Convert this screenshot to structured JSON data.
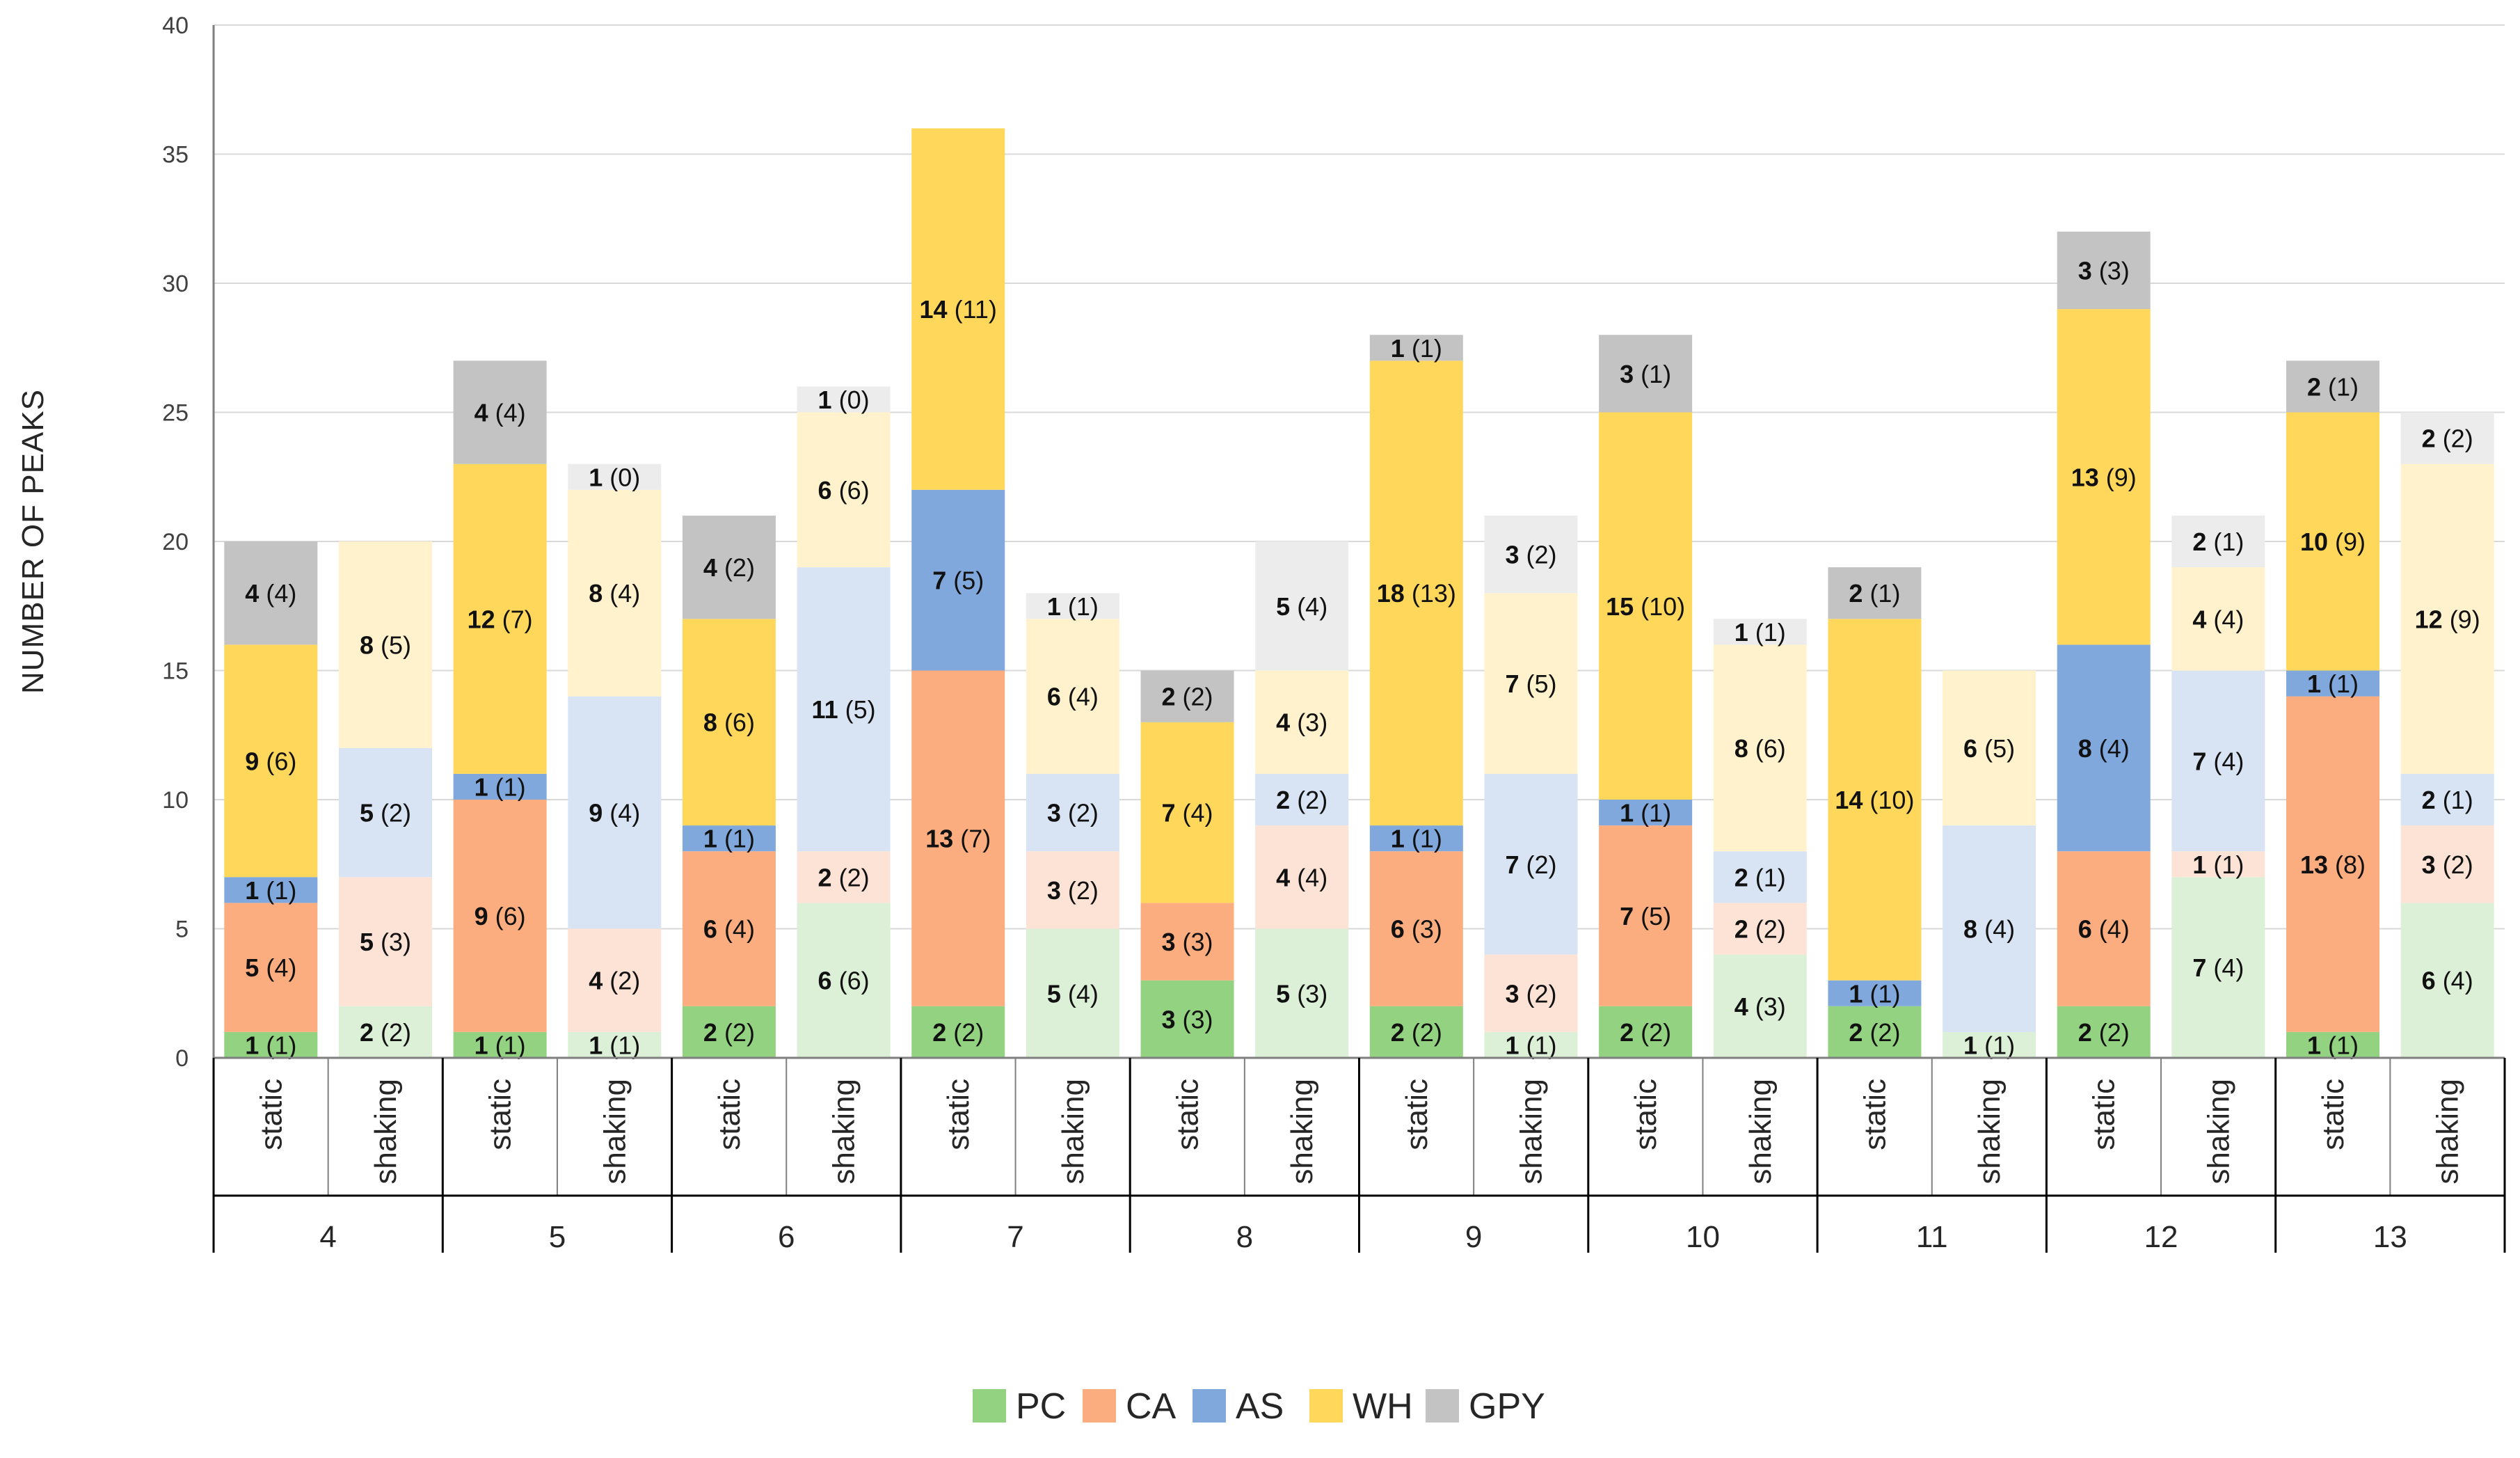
{
  "chart_data": {
    "type": "stacked-bar",
    "title": "",
    "xlabel": "",
    "ylabel": "NUMBER OF PEAKS",
    "ylim": [
      0,
      40
    ],
    "yticks": [
      0,
      5,
      10,
      15,
      20,
      25,
      30,
      35,
      40
    ],
    "grid": true,
    "legend_position": "bottom-center",
    "groups": [
      "4",
      "5",
      "6",
      "7",
      "8",
      "9",
      "10",
      "11",
      "12",
      "13"
    ],
    "conditions": [
      "static",
      "shaking"
    ],
    "series": [
      {
        "name": "PC",
        "color": "#92d281",
        "color_light": "#dbf0d6"
      },
      {
        "name": "CA",
        "color": "#fbad7f",
        "color_light": "#fde3d6"
      },
      {
        "name": "AS",
        "color": "#80a8dc",
        "color_light": "#d8e4f3"
      },
      {
        "name": "WH",
        "color": "#ffd75a",
        "color_light": "#fff2cc"
      },
      {
        "name": "GPY",
        "color": "#c3c3c3",
        "color_light": "#ececec"
      }
    ],
    "bars": [
      {
        "group": "4",
        "condition": "static",
        "segments": [
          {
            "series": "PC",
            "value": 1,
            "paren": "(1)"
          },
          {
            "series": "CA",
            "value": 5,
            "paren": "(4)"
          },
          {
            "series": "AS",
            "value": 1,
            "paren": "(1)"
          },
          {
            "series": "WH",
            "value": 9,
            "paren": "(6)"
          },
          {
            "series": "GPY",
            "value": 4,
            "paren": "(4)"
          }
        ]
      },
      {
        "group": "4",
        "condition": "shaking",
        "segments": [
          {
            "series": "PC",
            "value": 2,
            "paren": "(2)"
          },
          {
            "series": "CA",
            "value": 5,
            "paren": "(3)"
          },
          {
            "series": "AS",
            "value": 5,
            "paren": "(2)"
          },
          {
            "series": "WH",
            "value": 8,
            "paren": "(5)"
          }
        ]
      },
      {
        "group": "5",
        "condition": "static",
        "segments": [
          {
            "series": "PC",
            "value": 1,
            "paren": "(1)"
          },
          {
            "series": "CA",
            "value": 9,
            "paren": "(6)"
          },
          {
            "series": "AS",
            "value": 1,
            "paren": "(1)"
          },
          {
            "series": "WH",
            "value": 12,
            "paren": "(7)"
          },
          {
            "series": "GPY",
            "value": 4,
            "paren": "(4)"
          }
        ]
      },
      {
        "group": "5",
        "condition": "shaking",
        "segments": [
          {
            "series": "PC",
            "value": 1,
            "paren": "(1)"
          },
          {
            "series": "CA",
            "value": 4,
            "paren": "(2)"
          },
          {
            "series": "AS",
            "value": 9,
            "paren": "(4)"
          },
          {
            "series": "WH",
            "value": 8,
            "paren": "(4)"
          },
          {
            "series": "GPY",
            "value": 1,
            "paren": "(0)"
          }
        ]
      },
      {
        "group": "6",
        "condition": "static",
        "segments": [
          {
            "series": "PC",
            "value": 2,
            "paren": "(2)"
          },
          {
            "series": "CA",
            "value": 6,
            "paren": "(4)"
          },
          {
            "series": "AS",
            "value": 1,
            "paren": "(1)"
          },
          {
            "series": "WH",
            "value": 8,
            "paren": "(6)"
          },
          {
            "series": "GPY",
            "value": 4,
            "paren": "(2)"
          }
        ]
      },
      {
        "group": "6",
        "condition": "shaking",
        "segments": [
          {
            "series": "PC",
            "value": 6,
            "paren": "(6)"
          },
          {
            "series": "CA",
            "value": 2,
            "paren": "(2)"
          },
          {
            "series": "AS",
            "value": 11,
            "paren": "(5)"
          },
          {
            "series": "WH",
            "value": 6,
            "paren": "(6)"
          },
          {
            "series": "GPY",
            "value": 1,
            "paren": "(0)"
          }
        ]
      },
      {
        "group": "7",
        "condition": "static",
        "segments": [
          {
            "series": "PC",
            "value": 2,
            "paren": "(2)"
          },
          {
            "series": "CA",
            "value": 13,
            "paren": "(7)"
          },
          {
            "series": "AS",
            "value": 7,
            "paren": "(5)"
          },
          {
            "series": "WH",
            "value": 14,
            "paren": "(11)"
          }
        ]
      },
      {
        "group": "7",
        "condition": "shaking",
        "segments": [
          {
            "series": "PC",
            "value": 5,
            "paren": "(4)"
          },
          {
            "series": "CA",
            "value": 3,
            "paren": "(2)"
          },
          {
            "series": "AS",
            "value": 3,
            "paren": "(2)"
          },
          {
            "series": "WH",
            "value": 6,
            "paren": "(4)"
          },
          {
            "series": "GPY",
            "value": 1,
            "paren": "(1)"
          }
        ]
      },
      {
        "group": "8",
        "condition": "static",
        "segments": [
          {
            "series": "PC",
            "value": 3,
            "paren": "(3)"
          },
          {
            "series": "CA",
            "value": 3,
            "paren": "(3)"
          },
          {
            "series": "WH",
            "value": 7,
            "paren": "(4)"
          },
          {
            "series": "GPY",
            "value": 2,
            "paren": "(2)"
          }
        ]
      },
      {
        "group": "8",
        "condition": "shaking",
        "segments": [
          {
            "series": "PC",
            "value": 5,
            "paren": "(3)"
          },
          {
            "series": "CA",
            "value": 4,
            "paren": "(4)"
          },
          {
            "series": "AS",
            "value": 2,
            "paren": "(2)"
          },
          {
            "series": "WH",
            "value": 4,
            "paren": "(3)"
          },
          {
            "series": "GPY",
            "value": 5,
            "paren": "(4)"
          }
        ]
      },
      {
        "group": "9",
        "condition": "static",
        "segments": [
          {
            "series": "PC",
            "value": 2,
            "paren": "(2)"
          },
          {
            "series": "CA",
            "value": 6,
            "paren": "(3)"
          },
          {
            "series": "AS",
            "value": 1,
            "paren": "(1)"
          },
          {
            "series": "WH",
            "value": 18,
            "paren": "(13)"
          },
          {
            "series": "GPY",
            "value": 1,
            "paren": "(1)"
          }
        ]
      },
      {
        "group": "9",
        "condition": "shaking",
        "segments": [
          {
            "series": "PC",
            "value": 1,
            "paren": "(1)"
          },
          {
            "series": "CA",
            "value": 3,
            "paren": "(2)"
          },
          {
            "series": "AS",
            "value": 7,
            "paren": "(2)"
          },
          {
            "series": "WH",
            "value": 7,
            "paren": "(5)"
          },
          {
            "series": "GPY",
            "value": 3,
            "paren": "(2)"
          }
        ]
      },
      {
        "group": "10",
        "condition": "static",
        "segments": [
          {
            "series": "PC",
            "value": 2,
            "paren": "(2)"
          },
          {
            "series": "CA",
            "value": 7,
            "paren": "(5)"
          },
          {
            "series": "AS",
            "value": 1,
            "paren": "(1)"
          },
          {
            "series": "WH",
            "value": 15,
            "paren": "(10)"
          },
          {
            "series": "GPY",
            "value": 3,
            "paren": "(1)"
          }
        ]
      },
      {
        "group": "10",
        "condition": "shaking",
        "segments": [
          {
            "series": "PC",
            "value": 4,
            "paren": "(3)"
          },
          {
            "series": "CA",
            "value": 2,
            "paren": "(2)"
          },
          {
            "series": "AS",
            "value": 2,
            "paren": "(1)"
          },
          {
            "series": "WH",
            "value": 8,
            "paren": "(6)"
          },
          {
            "series": "GPY",
            "value": 1,
            "paren": "(1)"
          }
        ]
      },
      {
        "group": "11",
        "condition": "static",
        "segments": [
          {
            "series": "PC",
            "value": 2,
            "paren": "(2)"
          },
          {
            "series": "AS",
            "value": 1,
            "paren": "(1)"
          },
          {
            "series": "WH",
            "value": 14,
            "paren": "(10)"
          },
          {
            "series": "GPY",
            "value": 2,
            "paren": "(1)"
          }
        ]
      },
      {
        "group": "11",
        "condition": "shaking",
        "segments": [
          {
            "series": "PC",
            "value": 1,
            "paren": "(1)"
          },
          {
            "series": "AS",
            "value": 8,
            "paren": "(4)"
          },
          {
            "series": "WH",
            "value": 6,
            "paren": "(5)"
          }
        ]
      },
      {
        "group": "12",
        "condition": "static",
        "segments": [
          {
            "series": "PC",
            "value": 2,
            "paren": "(2)"
          },
          {
            "series": "CA",
            "value": 6,
            "paren": "(4)"
          },
          {
            "series": "AS",
            "value": 8,
            "paren": "(4)"
          },
          {
            "series": "WH",
            "value": 13,
            "paren": "(9)"
          },
          {
            "series": "GPY",
            "value": 3,
            "paren": "(3)"
          }
        ]
      },
      {
        "group": "12",
        "condition": "shaking",
        "segments": [
          {
            "series": "PC",
            "value": 7,
            "paren": "(4)"
          },
          {
            "series": "CA",
            "value": 1,
            "paren": "(1)"
          },
          {
            "series": "AS",
            "value": 7,
            "paren": "(4)"
          },
          {
            "series": "WH",
            "value": 4,
            "paren": "(4)"
          },
          {
            "series": "GPY",
            "value": 2,
            "paren": "(1)"
          }
        ]
      },
      {
        "group": "13",
        "condition": "static",
        "segments": [
          {
            "series": "PC",
            "value": 1,
            "paren": "(1)"
          },
          {
            "series": "CA",
            "value": 13,
            "paren": "(8)"
          },
          {
            "series": "AS",
            "value": 1,
            "paren": "(1)"
          },
          {
            "series": "WH",
            "value": 10,
            "paren": "(9)"
          },
          {
            "series": "GPY",
            "value": 2,
            "paren": "(1)"
          }
        ]
      },
      {
        "group": "13",
        "condition": "shaking",
        "segments": [
          {
            "series": "PC",
            "value": 6,
            "paren": "(4)"
          },
          {
            "series": "CA",
            "value": 3,
            "paren": "(2)"
          },
          {
            "series": "AS",
            "value": 2,
            "paren": "(1)"
          },
          {
            "series": "WH",
            "value": 12,
            "paren": "(9)"
          },
          {
            "series": "GPY",
            "value": 2,
            "paren": "(2)"
          }
        ]
      }
    ]
  }
}
